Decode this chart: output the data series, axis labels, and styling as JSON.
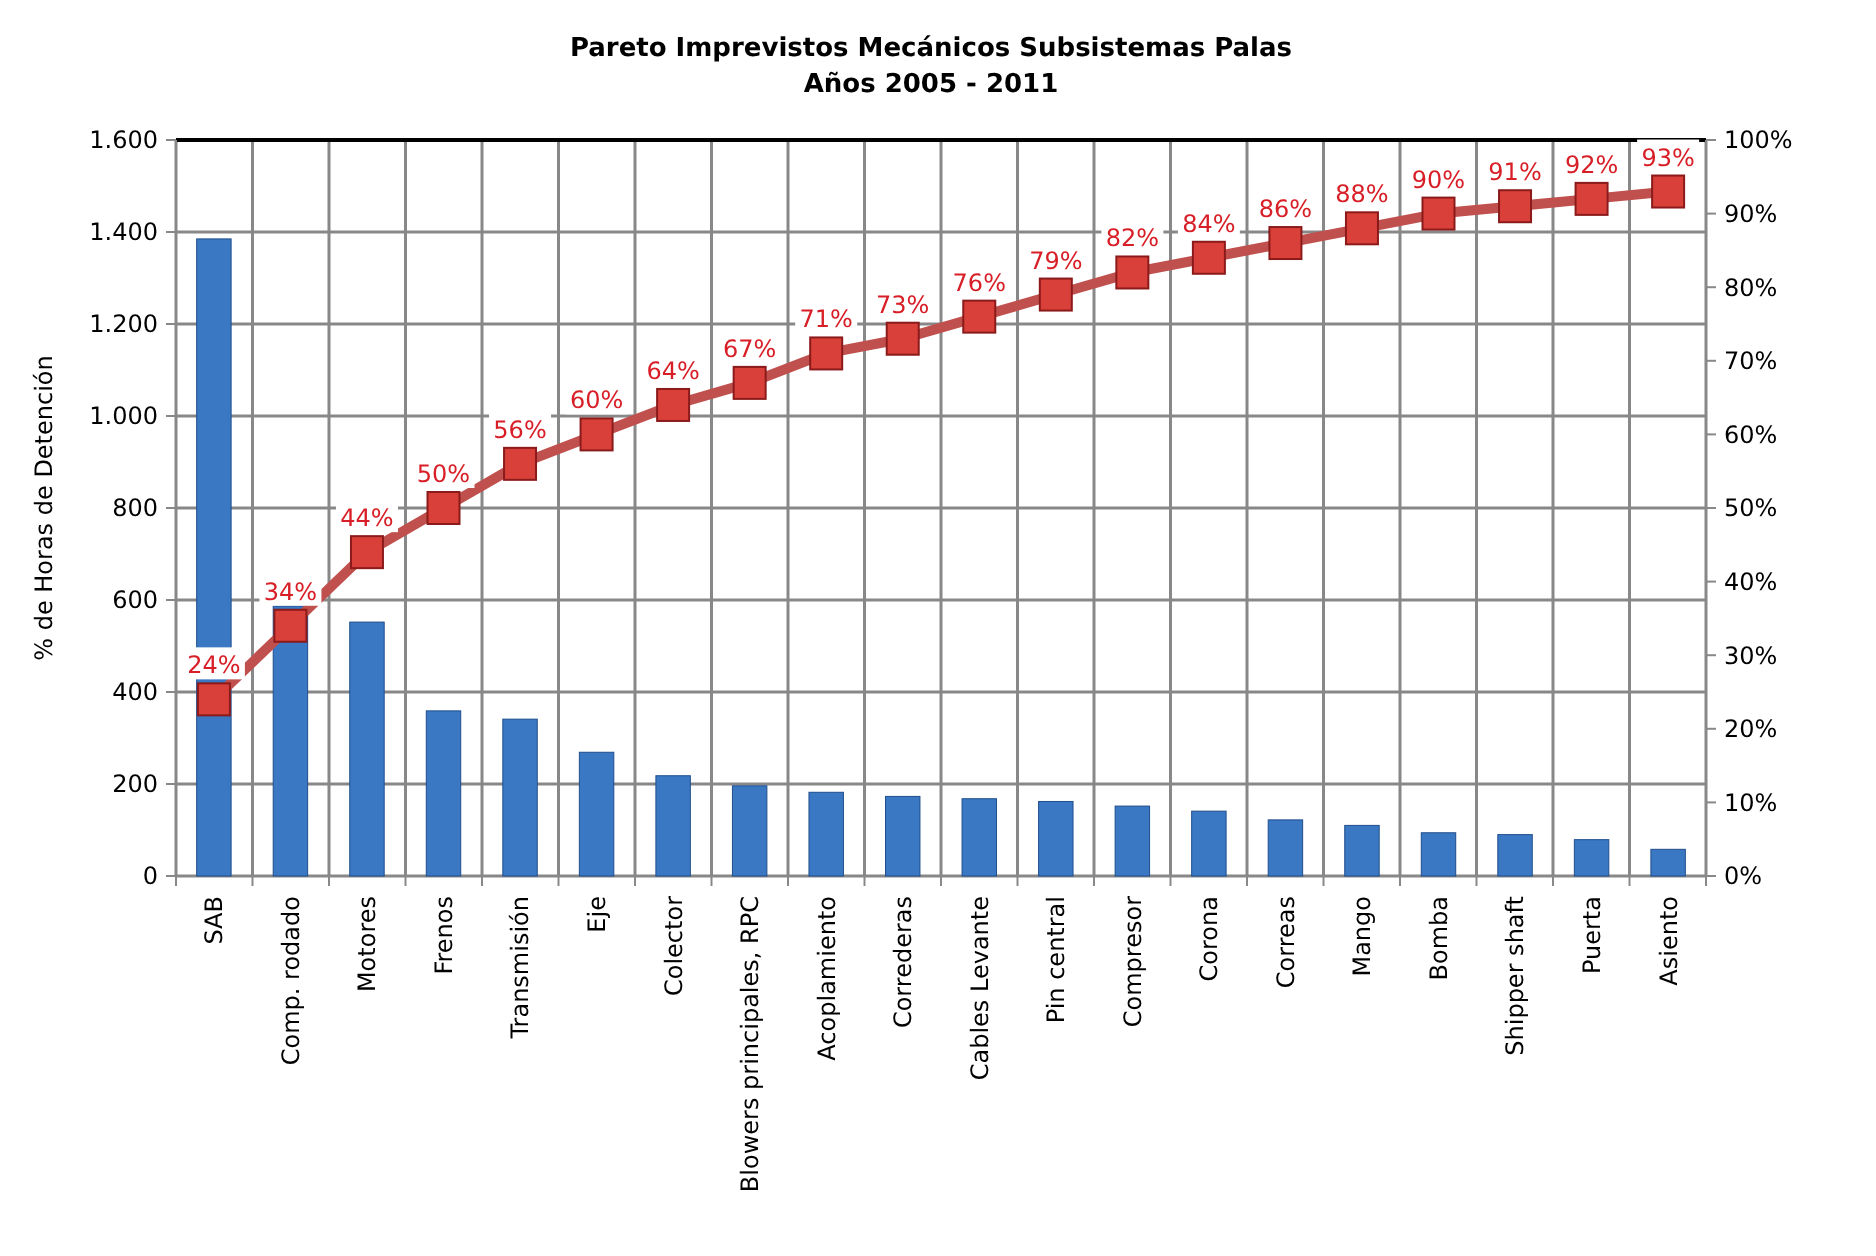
{
  "chart_data": {
    "type": "bar",
    "title": "Pareto Imprevistos Mecánicos Subsistemas Palas",
    "subtitle": "Años 2005 - 2011",
    "ylabel": "% de Horas de Detención",
    "categories": [
      "SAB",
      "Comp. rodado",
      "Motores",
      "Frenos",
      "Transmisión",
      "Eje",
      "Colector",
      "Blowers principales, RPC",
      "Acoplamiento",
      "Correderas",
      "Cables Levante",
      "Pin central",
      "Compresor",
      "Corona",
      "Correas",
      "Mango",
      "Bomba",
      "Shipper shaft",
      "Puerta",
      "Asiento"
    ],
    "series": [
      {
        "color": "#3a78c4",
        "values": [
          1385,
          587,
          552,
          359,
          341,
          269,
          218,
          196,
          182,
          173,
          168,
          162,
          152,
          141,
          122,
          110,
          94,
          90,
          79,
          58
        ]
      },
      {
        "type": "line",
        "axis": "y2",
        "color": "#c0504d",
        "marker": "square",
        "line_style": "solid",
        "values": [
          24,
          34,
          44,
          50,
          56,
          60,
          64,
          67,
          71,
          73,
          76,
          79,
          82,
          84,
          86,
          88,
          90,
          91,
          92,
          93
        ],
        "value_labels": [
          "24%",
          "34%",
          "44%",
          "50%",
          "56%",
          "60%",
          "64%",
          "67%",
          "71%",
          "73%",
          "76%",
          "79%",
          "82%",
          "84%",
          "86%",
          "88%",
          "90%",
          "91%",
          "92%",
          "93%"
        ]
      }
    ],
    "ylim": [
      0,
      1600
    ],
    "yticks": [
      {
        "value": 0,
        "label": "0"
      },
      {
        "value": 200,
        "label": "200"
      },
      {
        "value": 400,
        "label": "400"
      },
      {
        "value": 600,
        "label": "600"
      },
      {
        "value": 800,
        "label": "800"
      },
      {
        "value": 1000,
        "label": "1.000"
      },
      {
        "value": 1200,
        "label": "1.200"
      },
      {
        "value": 1400,
        "label": "1.400"
      },
      {
        "value": 1600,
        "label": "1.600"
      }
    ],
    "y2lim": [
      0,
      100
    ],
    "y2ticks": [
      {
        "value": 0,
        "label": "0%"
      },
      {
        "value": 10,
        "label": "10%"
      },
      {
        "value": 20,
        "label": "20%"
      },
      {
        "value": 30,
        "label": "30%"
      },
      {
        "value": 40,
        "label": "40%"
      },
      {
        "value": 50,
        "label": "50%"
      },
      {
        "value": 60,
        "label": "60%"
      },
      {
        "value": 70,
        "label": "70%"
      },
      {
        "value": 80,
        "label": "80%"
      },
      {
        "value": 90,
        "label": "90%"
      },
      {
        "value": 100,
        "label": "100%"
      }
    ],
    "grid": true
  }
}
